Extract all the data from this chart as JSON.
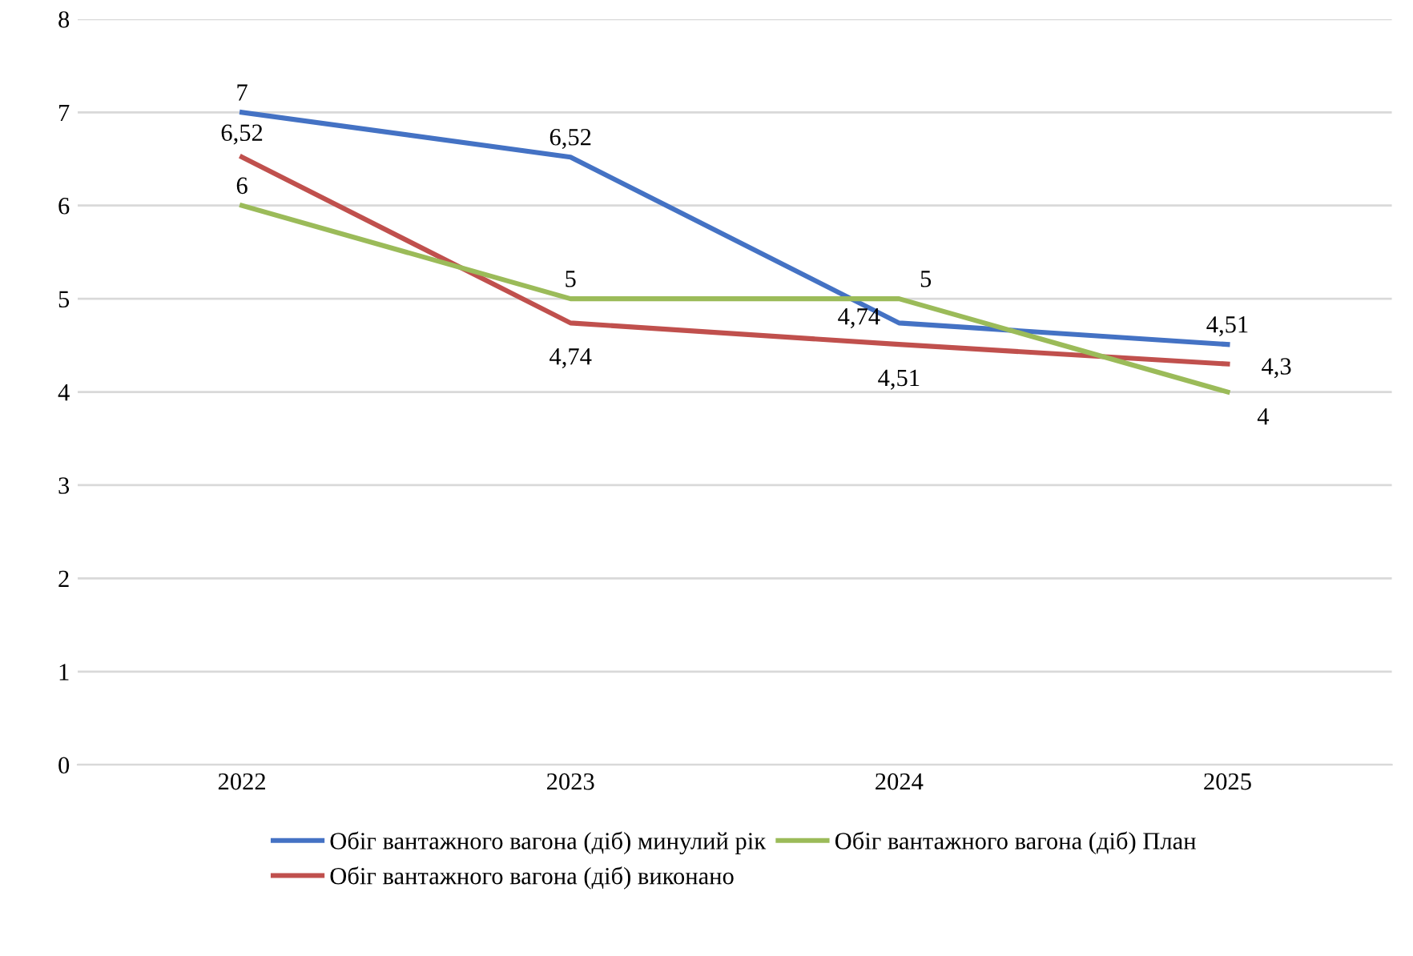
{
  "chart_data": {
    "type": "line",
    "categories": [
      "2022",
      "2023",
      "2024",
      "2025"
    ],
    "series": [
      {
        "name": "Обіг вантажного вагона (діб) минулий рік",
        "color": "#4472c4",
        "values": [
          7,
          6.52,
          4.74,
          4.51
        ],
        "value_labels": [
          "7",
          "6,52",
          "4,74",
          "4,51"
        ]
      },
      {
        "name": "Обіг вантажного вагона (діб) виконано",
        "color": "#c0504d",
        "values": [
          6.52,
          4.74,
          4.51,
          4.3
        ],
        "value_labels": [
          "6,52",
          "4,74",
          "4,51",
          "4,3"
        ]
      },
      {
        "name": "Обіг вантажного вагона (діб) План",
        "color": "#9bbb59",
        "values": [
          6,
          5,
          5,
          4
        ],
        "value_labels": [
          "6",
          "5",
          "5",
          "4"
        ]
      }
    ],
    "ylim": [
      0,
      8
    ],
    "yticks": [
      0,
      1,
      2,
      3,
      4,
      5,
      6,
      7,
      8
    ],
    "grid": "y",
    "legend": "bottom",
    "marker": "none",
    "line_style": "solid"
  }
}
